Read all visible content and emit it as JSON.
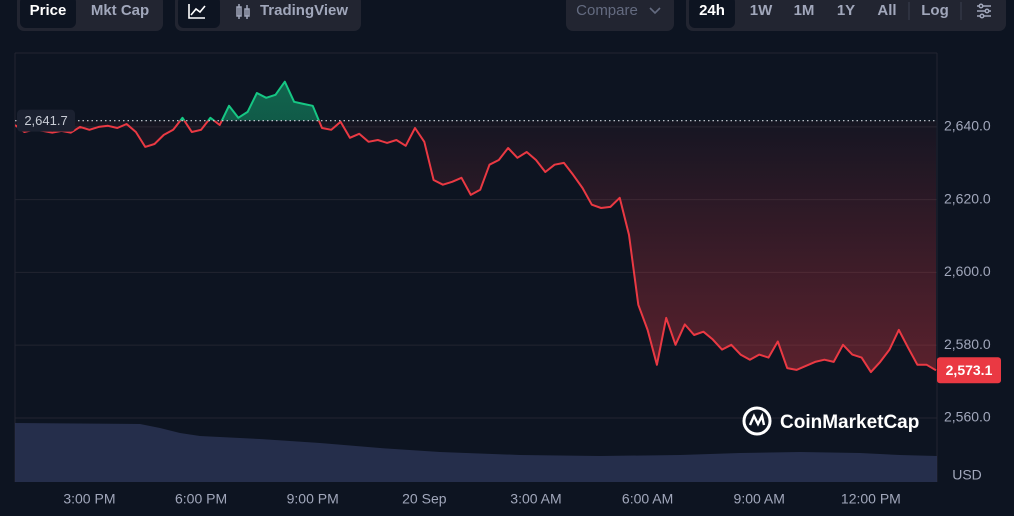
{
  "toolbar": {
    "tabs": [
      "Price",
      "Mkt Cap"
    ],
    "chart_tool": "TradingView",
    "compare": "Compare",
    "ranges": [
      "24h",
      "1W",
      "1M",
      "1Y",
      "All"
    ],
    "scale": "Log"
  },
  "chart_data": {
    "type": "line",
    "watermark": "CoinMarketCap",
    "y_unit": "USD",
    "categories": [
      null,
      null,
      null,
      null,
      null,
      null,
      null,
      null,
      "3:00 PM",
      null,
      null,
      null,
      null,
      null,
      null,
      null,
      null,
      null,
      null,
      null,
      "6:00 PM",
      null,
      null,
      null,
      null,
      null,
      null,
      null,
      null,
      null,
      null,
      null,
      "9:00 PM",
      null,
      null,
      null,
      null,
      null,
      null,
      null,
      null,
      null,
      null,
      null,
      "20 Sep",
      null,
      null,
      null,
      null,
      null,
      null,
      null,
      null,
      null,
      null,
      null,
      "3:00 AM",
      null,
      null,
      null,
      null,
      null,
      null,
      null,
      null,
      null,
      null,
      null,
      "6:00 AM",
      null,
      null,
      null,
      null,
      null,
      null,
      null,
      null,
      null,
      null,
      null,
      "9:00 AM",
      null,
      null,
      null,
      null,
      null,
      null,
      null,
      null,
      null,
      null,
      null,
      "12:00 PM",
      null,
      null,
      null,
      null,
      null,
      null,
      null
    ],
    "values": [
      2640.5,
      2638.6,
      2639.2,
      2638.9,
      2638.4,
      2638.9,
      2638.4,
      2640.0,
      2639.2,
      2640.0,
      2640.3,
      2639.7,
      2640.8,
      2638.6,
      2634.5,
      2635.3,
      2637.8,
      2639.2,
      2642.5,
      2638.6,
      2639.2,
      2642.5,
      2640.5,
      2645.8,
      2642.5,
      2644.1,
      2649.3,
      2648.0,
      2648.8,
      2652.4,
      2646.9,
      2646.3,
      2645.8,
      2639.7,
      2639.2,
      2641.4,
      2637.0,
      2638.1,
      2635.9,
      2636.4,
      2635.6,
      2636.4,
      2634.8,
      2639.7,
      2635.9,
      2625.4,
      2624.1,
      2624.9,
      2626.0,
      2621.3,
      2622.7,
      2629.6,
      2630.9,
      2634.2,
      2631.5,
      2633.1,
      2630.9,
      2627.6,
      2629.6,
      2630.1,
      2626.8,
      2623.2,
      2618.6,
      2617.7,
      2618.0,
      2620.5,
      2610.3,
      2591.1,
      2584.2,
      2574.6,
      2587.5,
      2580.1,
      2585.7,
      2582.8,
      2583.7,
      2581.6,
      2578.8,
      2580.1,
      2577.4,
      2576.0,
      2577.4,
      2576.6,
      2581.0,
      2573.7,
      2573.2,
      2574.3,
      2575.4,
      2576.0,
      2575.4,
      2580.1,
      2577.4,
      2576.6,
      2572.6,
      2575.4,
      2578.8,
      2584.2,
      2579.3,
      2574.6,
      2574.6,
      2573.1
    ],
    "value_labels": [
      null,
      null,
      null,
      null,
      null,
      null,
      null,
      null,
      null,
      null,
      null,
      null,
      null,
      null,
      null,
      null,
      null,
      null,
      null,
      null,
      null,
      null,
      null,
      null,
      null,
      null,
      null,
      null,
      null,
      null,
      null,
      null,
      null,
      null,
      null,
      null,
      null,
      null,
      null,
      null,
      null,
      null,
      null,
      null,
      null,
      null,
      null,
      null,
      null,
      null,
      null,
      null,
      null,
      null,
      null,
      null,
      null,
      null,
      null,
      null,
      null,
      null,
      null,
      null,
      null,
      null,
      null,
      null,
      null,
      null,
      null,
      null,
      null,
      null,
      null,
      null,
      null,
      null,
      null,
      null,
      null,
      null,
      null,
      null,
      null,
      null,
      null,
      null,
      null,
      null,
      null,
      null,
      null,
      null,
      null,
      null,
      null,
      null,
      null,
      "2,573.1"
    ],
    "baseline": {
      "value": 2641.7,
      "label": "2,641.7"
    },
    "colors": {
      "above": "#16c784",
      "below": "#ea3943"
    },
    "ylim": [
      2542.4,
      2660.3
    ],
    "yticks": [
      {
        "value": 2560,
        "label": "2,560.0"
      },
      {
        "value": 2580,
        "label": "2,580.0"
      },
      {
        "value": 2600,
        "label": "2,600.0"
      },
      {
        "value": 2620,
        "label": "2,620.0"
      },
      {
        "value": 2640,
        "label": "2,640.0"
      }
    ],
    "grid": true
  }
}
